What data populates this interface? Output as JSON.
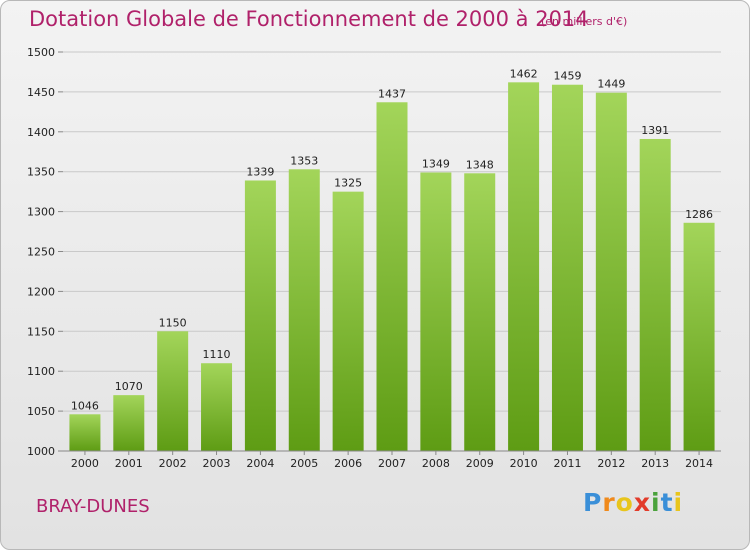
{
  "header": {
    "title": "Dotation Globale de Fonctionnement de 2000 à 2014",
    "unit": "(en milliers d'€)"
  },
  "footer": {
    "commune": "BRAY-DUNES",
    "logo": "Proxiti"
  },
  "colors": {
    "title": "#b0216a",
    "bar_top": "#a3d55a",
    "bar_bottom": "#5e9c14",
    "grid": "#c9c9c9",
    "axis_text": "#222222"
  },
  "chart_data": {
    "type": "bar",
    "title": "Dotation Globale de Fonctionnement de 2000 à 2014",
    "xlabel": "",
    "ylabel": "",
    "categories": [
      "2000",
      "2001",
      "2002",
      "2003",
      "2004",
      "2005",
      "2006",
      "2007",
      "2008",
      "2009",
      "2010",
      "2011",
      "2012",
      "2013",
      "2014"
    ],
    "values": [
      1046,
      1070,
      1150,
      1110,
      1339,
      1353,
      1325,
      1437,
      1349,
      1348,
      1462,
      1459,
      1449,
      1391,
      1286
    ],
    "ylim": [
      1000,
      1500
    ],
    "yticks": [
      1000,
      1050,
      1100,
      1150,
      1200,
      1250,
      1300,
      1350,
      1400,
      1450,
      1500
    ],
    "grid": true,
    "data_labels": true,
    "legend": "none"
  }
}
